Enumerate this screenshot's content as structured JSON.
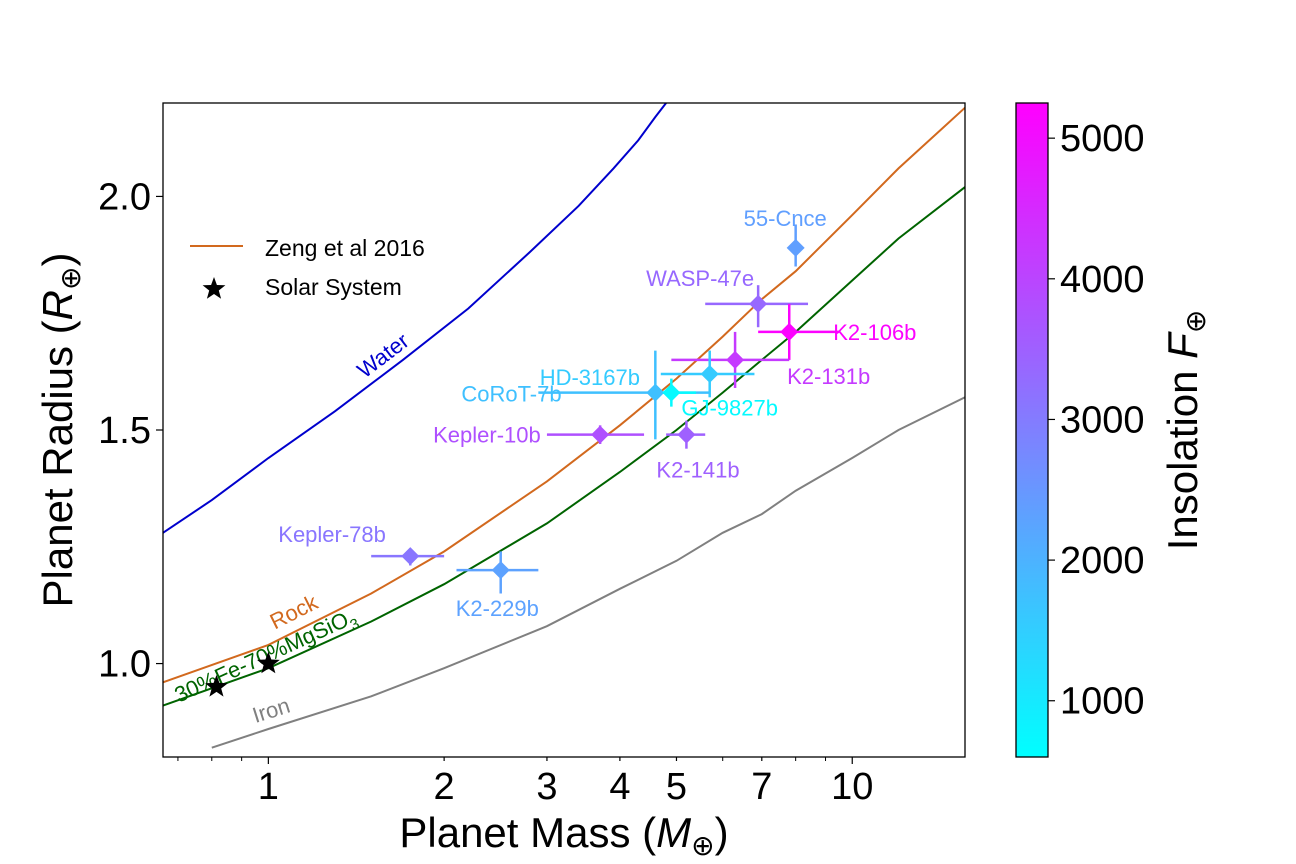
{
  "chart_data": {
    "type": "scatter",
    "title": "",
    "xlabel": "Planet Mass",
    "xlabel_unit": "M",
    "ylabel": "Planet Radius",
    "ylabel_unit": "R",
    "unit_symbol": "⊕",
    "xscale": "log",
    "xlim": [
      0.66,
      15.6
    ],
    "ylim": [
      0.8,
      2.2
    ],
    "x_ticks": [
      1,
      2,
      3,
      4,
      5,
      7,
      10
    ],
    "y_ticks": [
      1.0,
      1.5,
      2.0
    ],
    "grid": false,
    "legend_position": "upper-left",
    "legend": [
      {
        "label": "Zeng et al 2016",
        "marker": "line",
        "color": "#d2691e"
      },
      {
        "label": "Solar System",
        "marker": "star",
        "color": "#000000"
      }
    ],
    "colorbar": {
      "label": "Insolation",
      "label_symbol": "F",
      "min": 600,
      "max": 5250,
      "ticks": [
        1000,
        2000,
        3000,
        4000,
        5000
      ],
      "colormap": "cool",
      "color_low": "#00ffff",
      "color_high": "#ff00ff"
    },
    "curves": [
      {
        "label": "Water",
        "color": "#0000cd",
        "x": [
          0.66,
          0.8,
          1.0,
          1.3,
          1.7,
          2.2,
          2.8,
          3.4,
          3.9,
          4.3,
          4.6,
          4.8
        ],
        "y": [
          1.28,
          1.35,
          1.44,
          1.54,
          1.65,
          1.76,
          1.88,
          1.98,
          2.06,
          2.12,
          2.17,
          2.2
        ]
      },
      {
        "label": "Rock",
        "color": "#d2691e",
        "x": [
          0.66,
          1,
          1.5,
          2,
          3,
          4,
          5,
          6,
          7,
          8,
          10,
          12,
          15.6
        ],
        "y": [
          0.96,
          1.04,
          1.15,
          1.24,
          1.39,
          1.51,
          1.61,
          1.7,
          1.78,
          1.84,
          1.96,
          2.06,
          2.19
        ]
      },
      {
        "label": "30%Fe-70%MgSiO",
        "label_subscript": "3",
        "color": "#006400",
        "x": [
          0.66,
          1,
          1.5,
          2,
          3,
          4,
          5,
          6,
          7,
          8,
          10,
          12,
          15.6
        ],
        "y": [
          0.91,
          0.99,
          1.09,
          1.17,
          1.3,
          1.41,
          1.5,
          1.58,
          1.65,
          1.71,
          1.82,
          1.91,
          2.02
        ]
      },
      {
        "label": "Iron",
        "color": "#808080",
        "x": [
          0.8,
          1,
          1.5,
          2,
          3,
          4,
          5,
          6,
          7,
          8,
          10,
          12,
          15.6
        ],
        "y": [
          0.82,
          0.86,
          0.93,
          0.99,
          1.08,
          1.16,
          1.22,
          1.28,
          1.32,
          1.37,
          1.44,
          1.5,
          1.57
        ]
      }
    ],
    "solar_system": [
      {
        "x": 0.815,
        "y": 0.95
      },
      {
        "x": 1.0,
        "y": 1.0
      }
    ],
    "planets": [
      {
        "name": "55-Cnce",
        "x": 8.0,
        "x_err": [
          8.0,
          8.0
        ],
        "y": 1.89,
        "y_err": [
          1.85,
          1.94
        ],
        "insolation": 2350
      },
      {
        "name": "WASP-47e",
        "x": 6.9,
        "x_err": [
          5.6,
          8.4
        ],
        "y": 1.77,
        "y_err": [
          1.72,
          1.81
        ],
        "insolation": 3350
      },
      {
        "name": "K2-106b",
        "x": 7.8,
        "x_err": [
          6.9,
          9.5
        ],
        "y": 1.71,
        "y_err": [
          1.65,
          1.77
        ],
        "insolation": 5200
      },
      {
        "name": "K2-131b",
        "x": 6.3,
        "x_err": [
          4.9,
          7.8
        ],
        "y": 1.65,
        "y_err": [
          1.59,
          1.71
        ],
        "insolation": 4200
      },
      {
        "name": "HD-3167b",
        "x": 5.7,
        "x_err": [
          4.7,
          6.8
        ],
        "y": 1.62,
        "y_err": [
          1.57,
          1.67
        ],
        "insolation": 1550
      },
      {
        "name": "CoRoT-7b",
        "x": 4.6,
        "x_err": [
          2.9,
          5.7
        ],
        "y": 1.58,
        "y_err": [
          1.48,
          1.67
        ],
        "insolation": 1750
      },
      {
        "name": "GJ-9827b",
        "x": 4.9,
        "x_err": [
          4.5,
          5.4
        ],
        "y": 1.58,
        "y_err": [
          1.55,
          1.61
        ],
        "insolation": 700
      },
      {
        "name": "Kepler-10b",
        "x": 3.7,
        "x_err": [
          3.0,
          4.4
        ],
        "y": 1.49,
        "y_err": [
          1.47,
          1.51
        ],
        "insolation": 3800
      },
      {
        "name": "K2-141b",
        "x": 5.2,
        "x_err": [
          4.8,
          5.6
        ],
        "y": 1.49,
        "y_err": [
          1.46,
          1.52
        ],
        "insolation": 3500
      },
      {
        "name": "Kepler-78b",
        "x": 1.75,
        "x_err": [
          1.5,
          2.0
        ],
        "y": 1.23,
        "y_err": [
          1.21,
          1.24
        ],
        "insolation": 3100
      },
      {
        "name": "K2-229b",
        "x": 2.5,
        "x_err": [
          2.1,
          2.9
        ],
        "y": 1.2,
        "y_err": [
          1.15,
          1.24
        ],
        "insolation": 2300
      }
    ]
  }
}
